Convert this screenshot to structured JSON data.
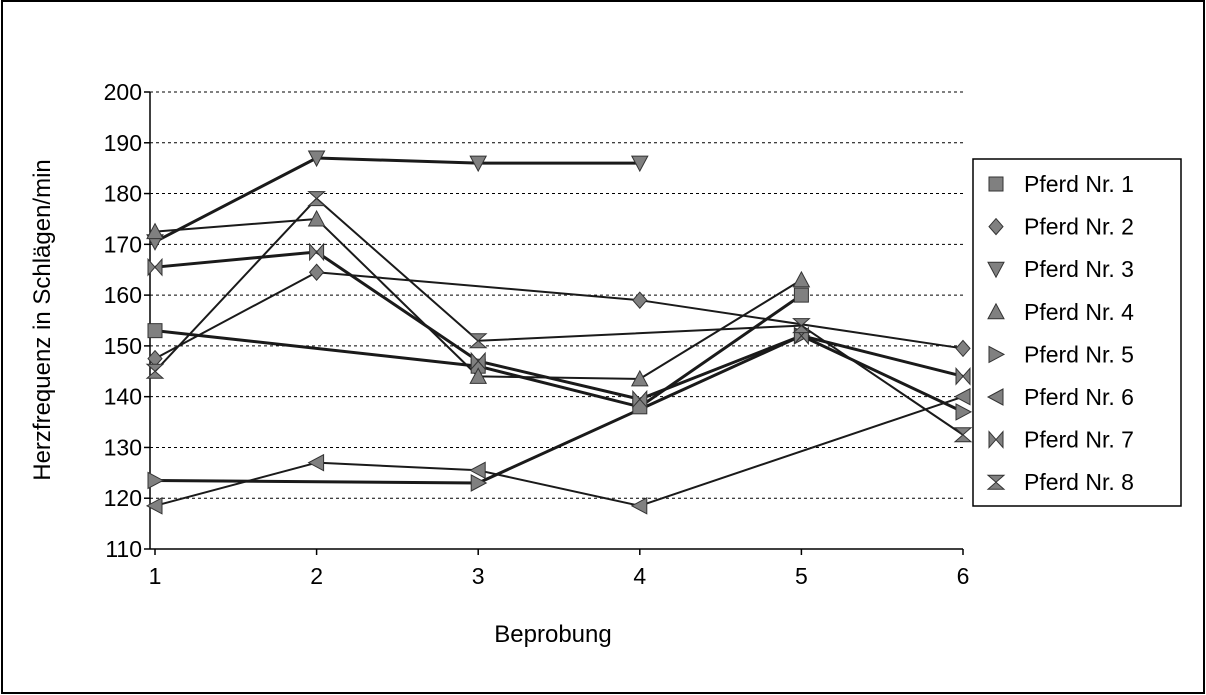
{
  "chart_data": {
    "type": "line",
    "title": "",
    "xlabel": "Beprobung",
    "ylabel": "Herzfrequenz in Schlägen/min",
    "x": [
      1,
      2,
      3,
      4,
      5,
      6
    ],
    "x_tick_labels": [
      "1",
      "2",
      "3",
      "4",
      "5",
      "6"
    ],
    "ylim": [
      110,
      200
    ],
    "y_ticks": [
      110,
      120,
      130,
      140,
      150,
      160,
      170,
      180,
      190,
      200
    ],
    "grid": "horizontal dashed",
    "legend_position": "right",
    "series": [
      {
        "name": "Pferd Nr. 1",
        "marker": "square",
        "values": [
          153,
          null,
          146,
          138,
          160,
          null
        ]
      },
      {
        "name": "Pferd Nr. 2",
        "marker": "diamond",
        "values": [
          147.5,
          164.5,
          null,
          159,
          null,
          149.5
        ]
      },
      {
        "name": "Pferd Nr. 3",
        "marker": "triangle-down",
        "values": [
          170.5,
          187,
          186,
          186,
          null,
          null
        ]
      },
      {
        "name": "Pferd Nr. 4",
        "marker": "triangle-up",
        "values": [
          172.5,
          175,
          144,
          143.5,
          163,
          null
        ]
      },
      {
        "name": "Pferd Nr. 5",
        "marker": "triangle-right",
        "values": [
          123.5,
          null,
          123,
          null,
          152,
          137
        ]
      },
      {
        "name": "Pferd Nr. 6",
        "marker": "triangle-left",
        "values": [
          118.5,
          127,
          125.5,
          118.5,
          null,
          140
        ]
      },
      {
        "name": "Pferd Nr. 7",
        "marker": "bowtie",
        "values": [
          165.5,
          168.5,
          147,
          139.5,
          152,
          144
        ]
      },
      {
        "name": "Pferd Nr. 8",
        "marker": "hourglass",
        "values": [
          145,
          179,
          151,
          null,
          154,
          132.5
        ]
      }
    ],
    "colors": {
      "line": "#1a1a1a",
      "marker": "#808080",
      "marker_stroke": "#333333",
      "grid": "#000000"
    }
  }
}
